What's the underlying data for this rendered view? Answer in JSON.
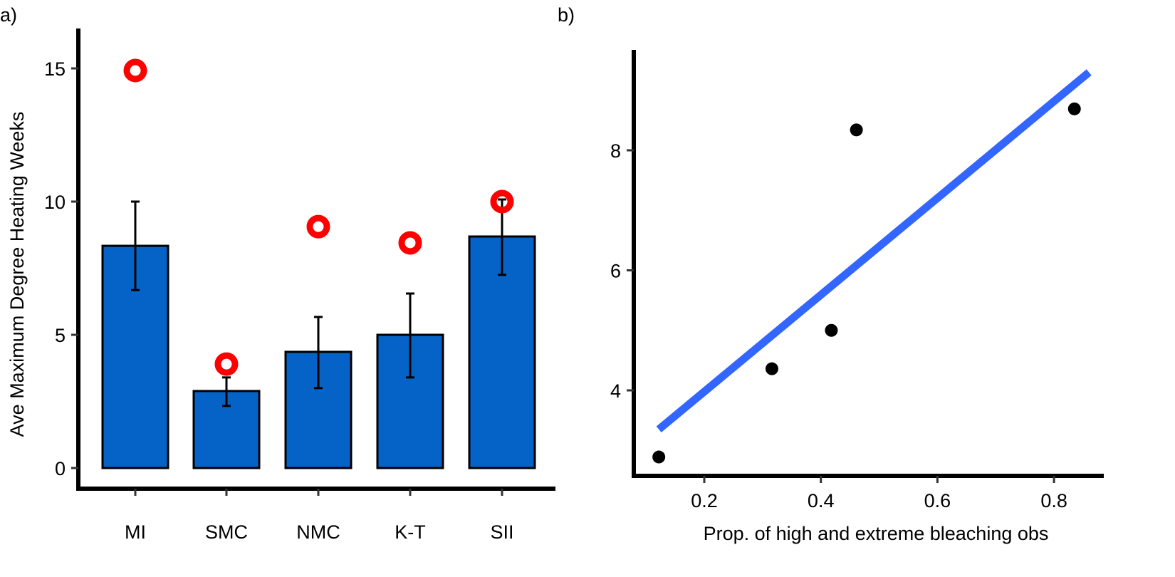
{
  "chart_data": [
    {
      "panel_label": "a)",
      "type": "bar",
      "ylabel": "Ave Maximum Degree Heating Weeks",
      "xlabel": "",
      "categories": [
        "MI",
        "SMC",
        "NMC",
        "K-T",
        "SII"
      ],
      "values": [
        8.34,
        2.89,
        4.36,
        5.0,
        8.69
      ],
      "error_upper": [
        10.0,
        3.4,
        5.67,
        6.55,
        10.08
      ],
      "error_lower": [
        6.68,
        2.33,
        3.0,
        3.4,
        7.25
      ],
      "max_points": [
        14.92,
        3.9,
        9.06,
        8.45,
        10.0
      ],
      "yticks": [
        "0",
        "5",
        "10",
        "15"
      ],
      "ylim": [
        0,
        15.8
      ],
      "grid": false,
      "colors": {
        "bar": "#0563C8",
        "max_point": "#FF0000",
        "error_bar": "#000000"
      }
    },
    {
      "panel_label": "b)",
      "type": "scatter",
      "xlabel": "Prop. of high and extreme bleaching obs",
      "ylabel": "",
      "x": [
        0.122,
        0.316,
        0.418,
        0.461,
        0.835
      ],
      "y": [
        2.89,
        4.36,
        5.0,
        8.34,
        8.69
      ],
      "fit_line": {
        "x": [
          0.122,
          0.86
        ],
        "y": [
          3.35,
          9.3
        ]
      },
      "xticks": [
        "0.2",
        "0.4",
        "0.6",
        "0.8"
      ],
      "yticks": [
        "4",
        "6",
        "8"
      ],
      "xlim": [
        0.1,
        0.88
      ],
      "ylim": [
        2.7,
        9.7
      ],
      "grid": false,
      "colors": {
        "points": "#000000",
        "fit_line": "#3366FF"
      }
    }
  ]
}
